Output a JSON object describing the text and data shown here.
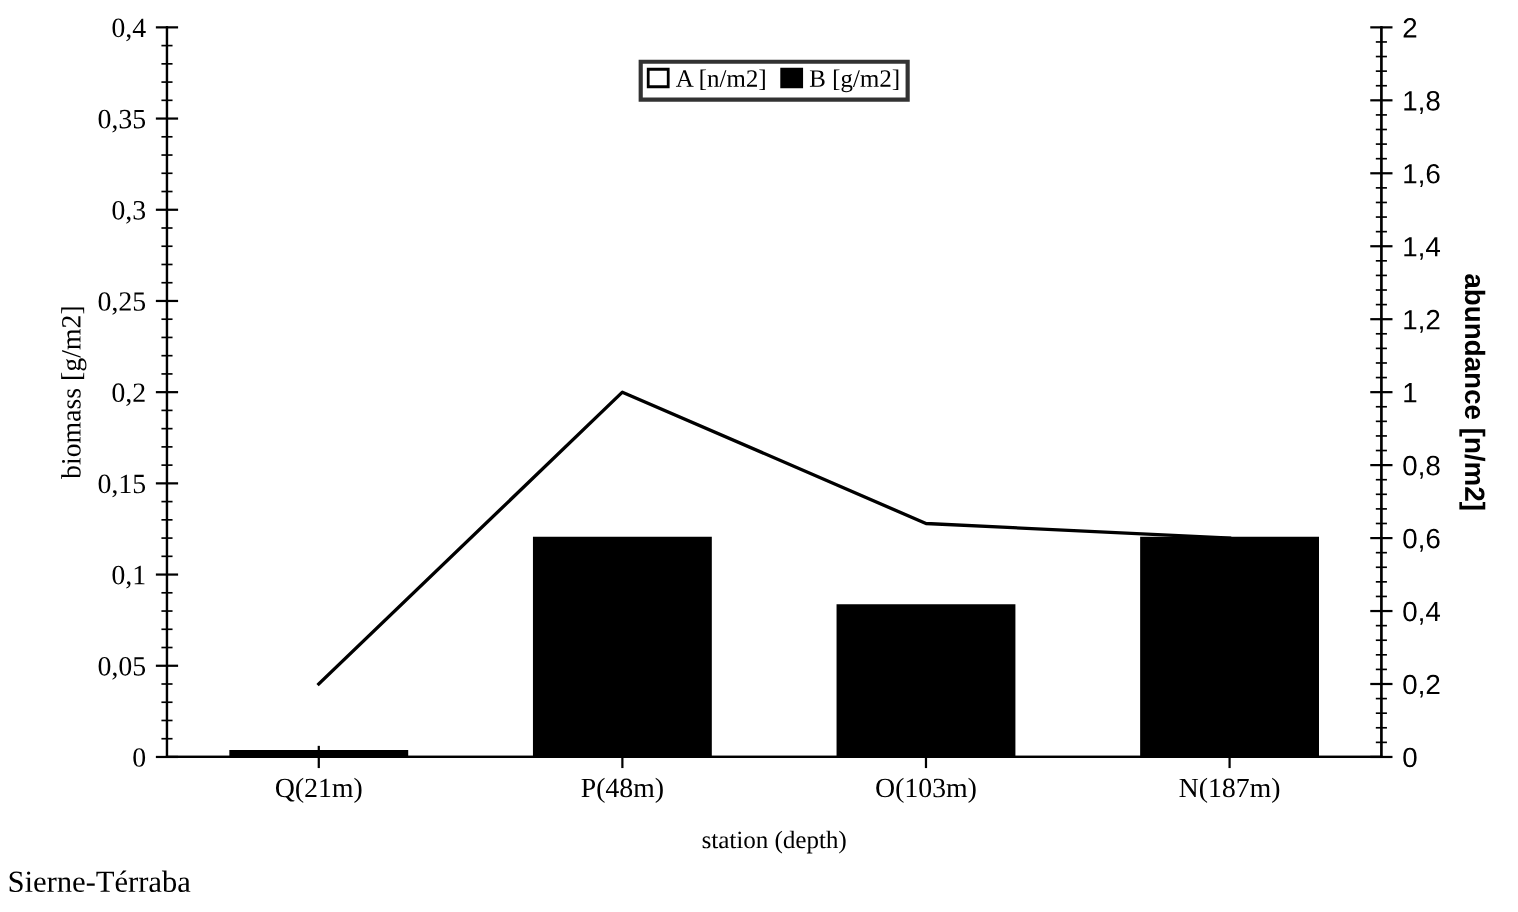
{
  "chart_data": {
    "type": "bar",
    "xlabel": "station (depth)",
    "ylabel": "biomass [g/m2]",
    "y2label": "abundance [n/m2]",
    "categories": [
      "Q(21m)",
      "P(48m)",
      "O(103m)",
      "N(187m)"
    ],
    "series": [
      {
        "name": "A [n/m2]",
        "type": "line",
        "color": "#000000",
        "axis": "y2",
        "values": [
          0.2,
          1.0,
          0.64,
          0.6
        ]
      },
      {
        "name": "B [g/m2]",
        "color": "#000000",
        "values": [
          0.003,
          0.12,
          0.083,
          0.12
        ]
      }
    ],
    "ylim": [
      0,
      0.4
    ],
    "yticks": [
      0,
      {
        "value": 0.05,
        "label": "0,05"
      },
      {
        "value": 0.1,
        "label": "0,1"
      },
      {
        "value": 0.15,
        "label": "0,15"
      },
      {
        "value": 0.2,
        "label": "0,2"
      },
      {
        "value": 0.25,
        "label": "0,25"
      },
      {
        "value": 0.3,
        "label": "0,3"
      },
      {
        "value": 0.35,
        "label": "0,35"
      },
      {
        "value": 0.4,
        "label": "0,4"
      }
    ],
    "y2lim": [
      0,
      2
    ],
    "y2ticks": [
      0,
      {
        "value": 0.2,
        "label": "0,2"
      },
      {
        "value": 0.4,
        "label": "0,4"
      },
      {
        "value": 0.6,
        "label": "0,6"
      },
      {
        "value": 0.8,
        "label": "0,8"
      },
      1,
      {
        "value": 1.2,
        "label": "1,2"
      },
      {
        "value": 1.4,
        "label": "1,4"
      },
      {
        "value": 1.6,
        "label": "1,6"
      },
      {
        "value": 1.8,
        "label": "1,8"
      },
      2
    ],
    "legend": "top",
    "grid": false,
    "annotations": [
      "Sierne-Térraba"
    ]
  }
}
